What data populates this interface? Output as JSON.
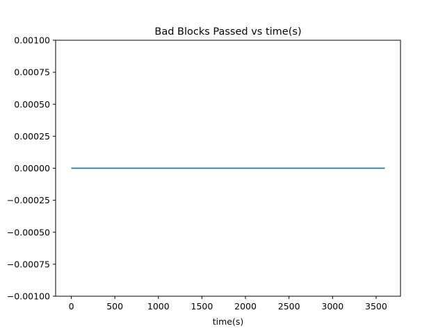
{
  "chart_data": {
    "type": "line",
    "title": "Bad Blocks Passed vs time(s)",
    "xlabel": "time(s)",
    "ylabel": "",
    "xlim": [
      -180,
      3780
    ],
    "ylim": [
      -0.001,
      0.001
    ],
    "xticks": [
      0,
      500,
      1000,
      1500,
      2000,
      2500,
      3000,
      3500
    ],
    "xtick_labels": [
      "0",
      "500",
      "1000",
      "1500",
      "2000",
      "2500",
      "3000",
      "3500"
    ],
    "yticks": [
      0.001,
      0.00075,
      0.0005,
      0.00025,
      0,
      -0.00025,
      -0.0005,
      -0.00075,
      -0.001
    ],
    "ytick_labels": [
      "0.00100",
      "0.00075",
      "0.00050",
      "0.00025",
      "0.00000",
      "−0.00025",
      "−0.00050",
      "−0.00075",
      "−0.00100"
    ],
    "grid": false,
    "series": [
      {
        "color": "#1f77b4",
        "x": [
          0,
          3600
        ],
        "y": [
          0,
          0
        ]
      }
    ]
  }
}
